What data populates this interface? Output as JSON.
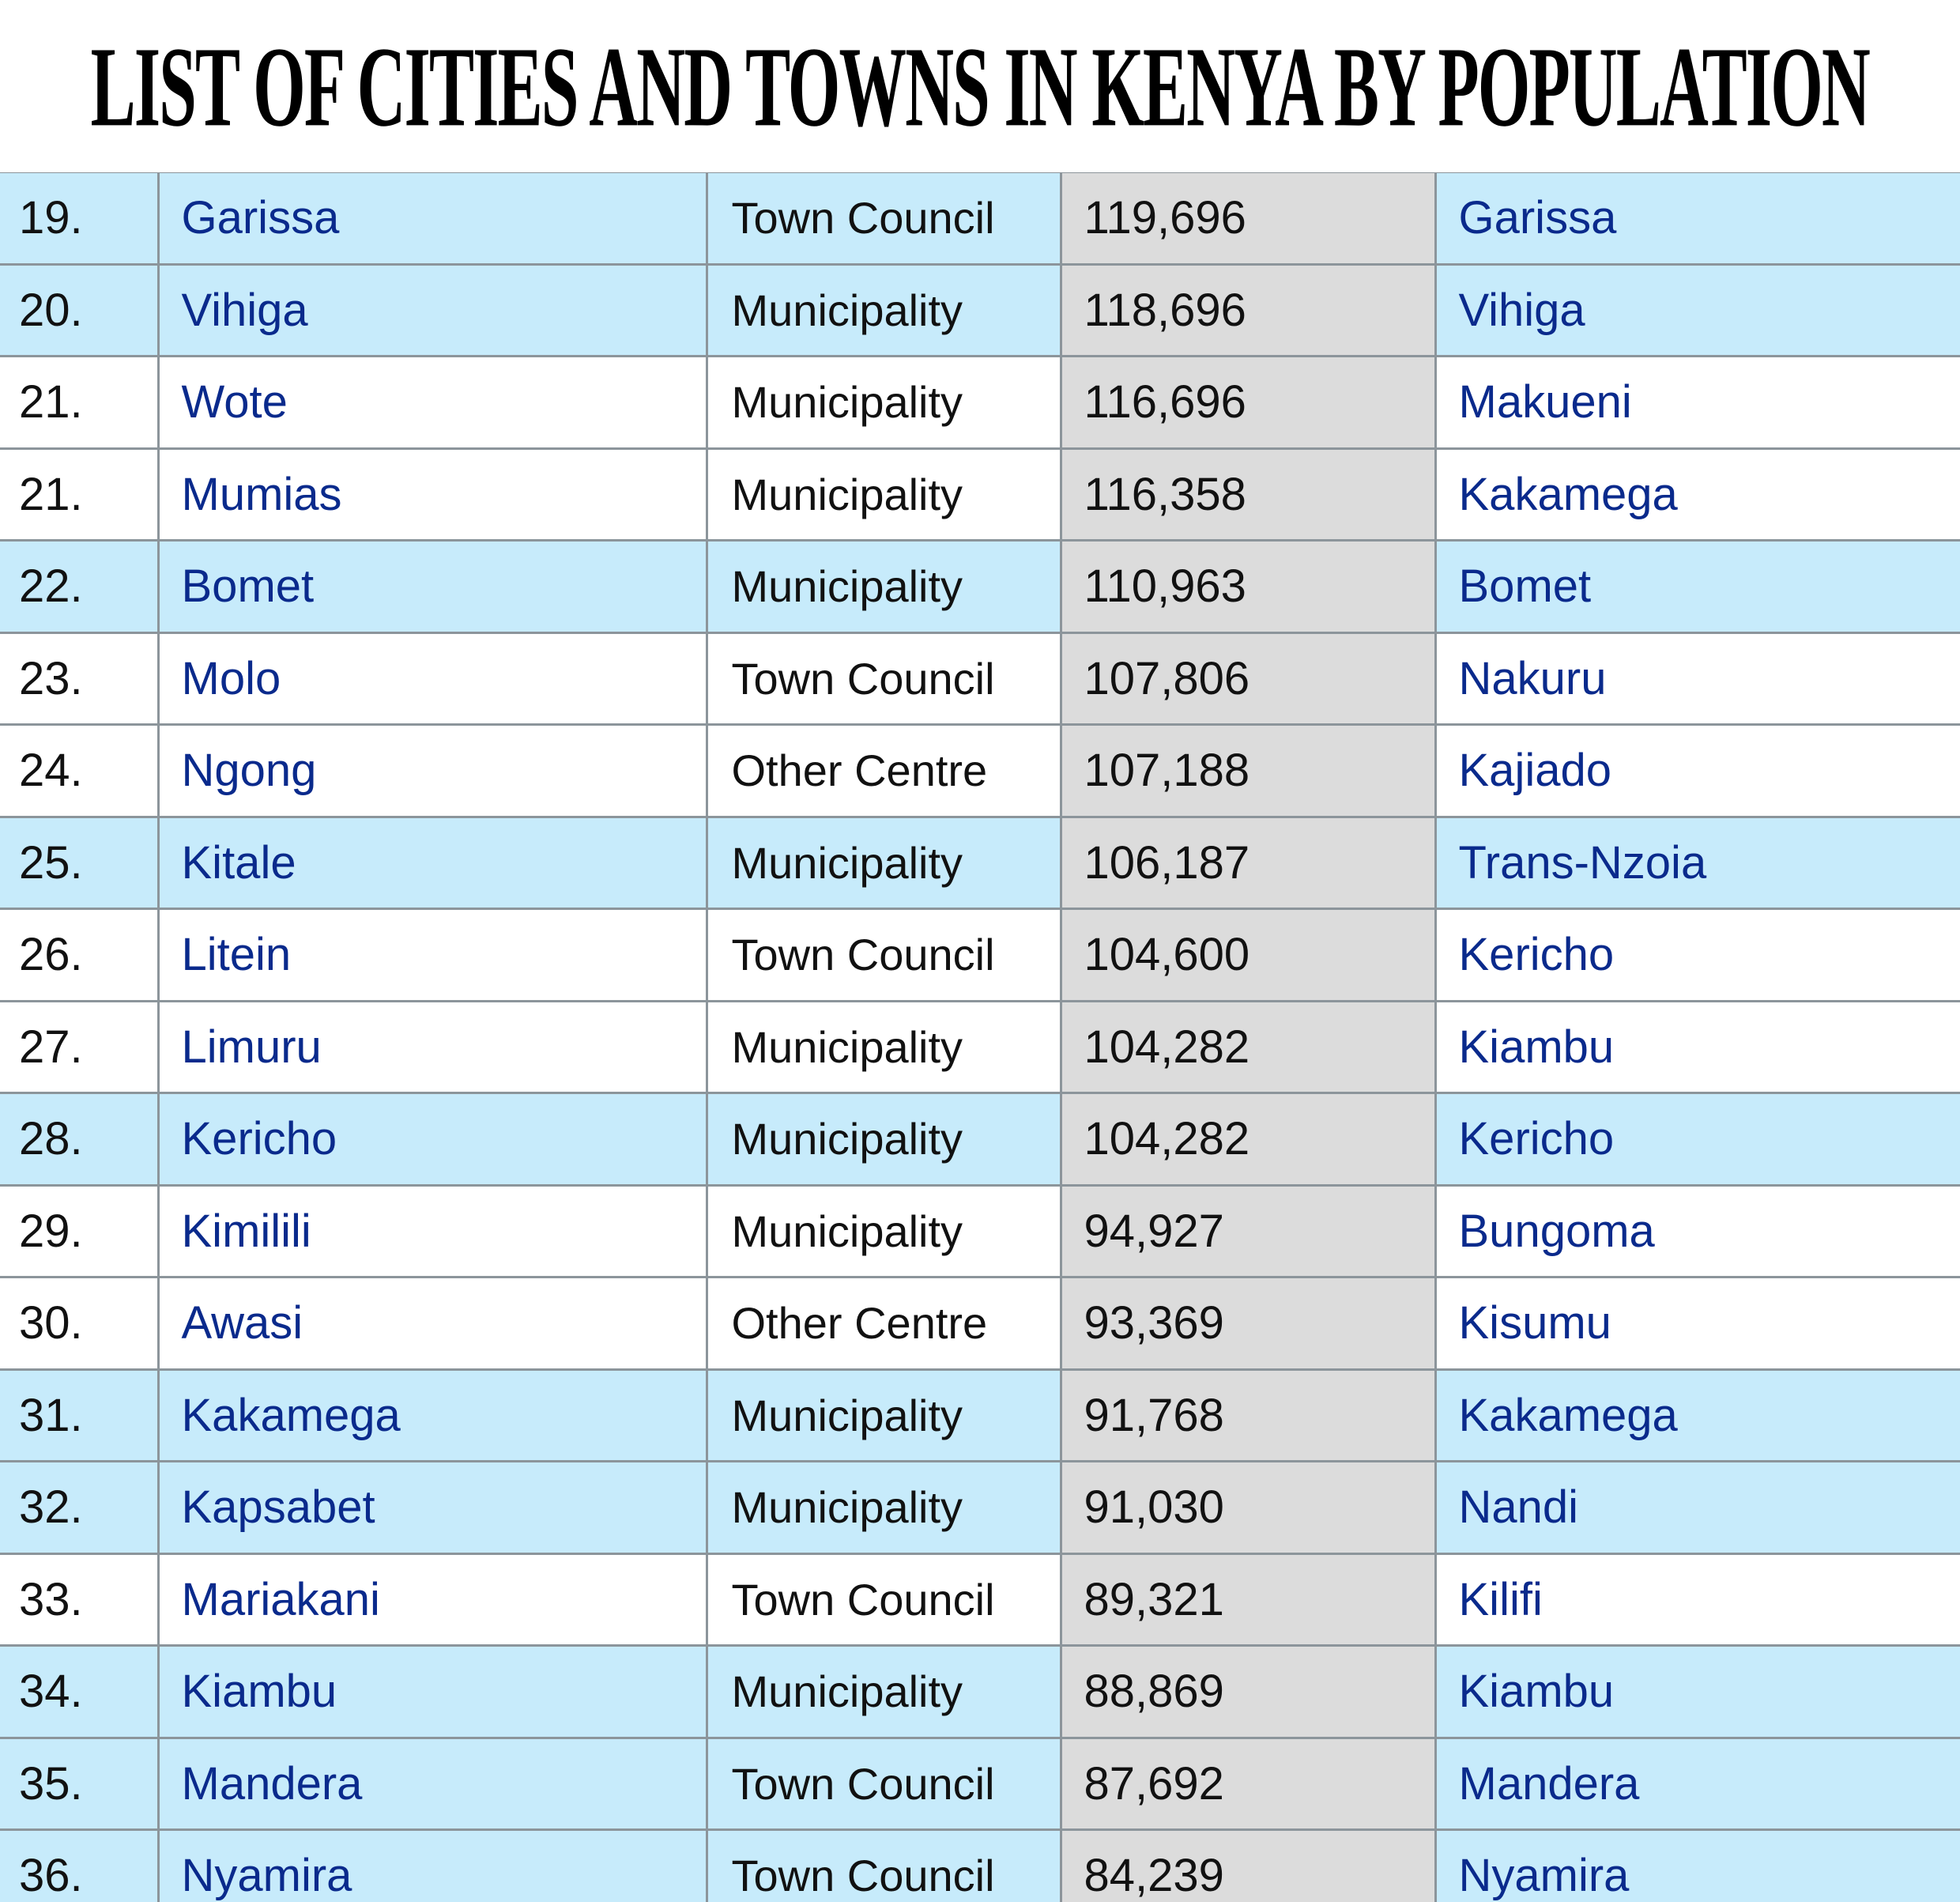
{
  "title": "LIST OF CITIES AND TOWNS IN KENYA BY POPULATION",
  "colors": {
    "highlight_row": "#c7ebfb",
    "plain_row": "#ffffff",
    "population_column": "#dcdcdc",
    "link_text": "#0a2a8c",
    "grid_line": "#8c959b"
  },
  "rows": [
    {
      "rank": "19.",
      "name": "Garissa",
      "type": "Town Council",
      "population": "119,696",
      "county": "Garissa",
      "highlight": true
    },
    {
      "rank": "20.",
      "name": "Vihiga",
      "type": "Municipality",
      "population": "118,696",
      "county": "Vihiga",
      "highlight": true
    },
    {
      "rank": "21.",
      "name": "Wote",
      "type": "Municipality",
      "population": "116,696",
      "county": "Makueni",
      "highlight": false
    },
    {
      "rank": "21.",
      "name": "Mumias",
      "type": "Municipality",
      "population": "116,358",
      "county": "Kakamega",
      "highlight": false
    },
    {
      "rank": "22.",
      "name": "Bomet",
      "type": "Municipality",
      "population": "110,963",
      "county": "Bomet",
      "highlight": true
    },
    {
      "rank": "23.",
      "name": "Molo",
      "type": "Town Council",
      "population": "107,806",
      "county": "Nakuru",
      "highlight": false
    },
    {
      "rank": "24.",
      "name": "Ngong",
      "type": "Other Centre",
      "population": "107,188",
      "county": "Kajiado",
      "highlight": false
    },
    {
      "rank": "25.",
      "name": "Kitale",
      "type": "Municipality",
      "population": "106,187",
      "county": "Trans-Nzoia",
      "highlight": true
    },
    {
      "rank": "26.",
      "name": "Litein",
      "type": "Town Council",
      "population": "104,600",
      "county": "Kericho",
      "highlight": false
    },
    {
      "rank": "27.",
      "name": "Limuru",
      "type": "Municipality",
      "population": "104,282",
      "county": "Kiambu",
      "highlight": false
    },
    {
      "rank": "28.",
      "name": "Kericho",
      "type": "Municipality",
      "population": "104,282",
      "county": "Kericho",
      "highlight": true
    },
    {
      "rank": "29.",
      "name": "Kimilili",
      "type": "Municipality",
      "population": "94,927",
      "county": "Bungoma",
      "highlight": false
    },
    {
      "rank": "30.",
      "name": "Awasi",
      "type": "Other Centre",
      "population": "93,369",
      "county": "Kisumu",
      "highlight": false
    },
    {
      "rank": "31.",
      "name": "Kakamega",
      "type": "Municipality",
      "population": "91,768",
      "county": "Kakamega",
      "highlight": true
    },
    {
      "rank": "32.",
      "name": "Kapsabet",
      "type": "Municipality",
      "population": "91,030",
      "county": "Nandi",
      "highlight": true
    },
    {
      "rank": "33.",
      "name": "Mariakani",
      "type": "Town Council",
      "population": "89,321",
      "county": "Kilifi",
      "highlight": false
    },
    {
      "rank": "34.",
      "name": "Kiambu",
      "type": "Municipality",
      "population": "88,869",
      "county": "Kiambu",
      "highlight": true
    },
    {
      "rank": "35.",
      "name": "Mandera",
      "type": "Town Council",
      "population": "87,692",
      "county": "Mandera",
      "highlight": true
    },
    {
      "rank": "36.",
      "name": "Nyamira",
      "type": "Town Council",
      "population": "84,239",
      "county": "Nyamira",
      "highlight": true
    }
  ]
}
